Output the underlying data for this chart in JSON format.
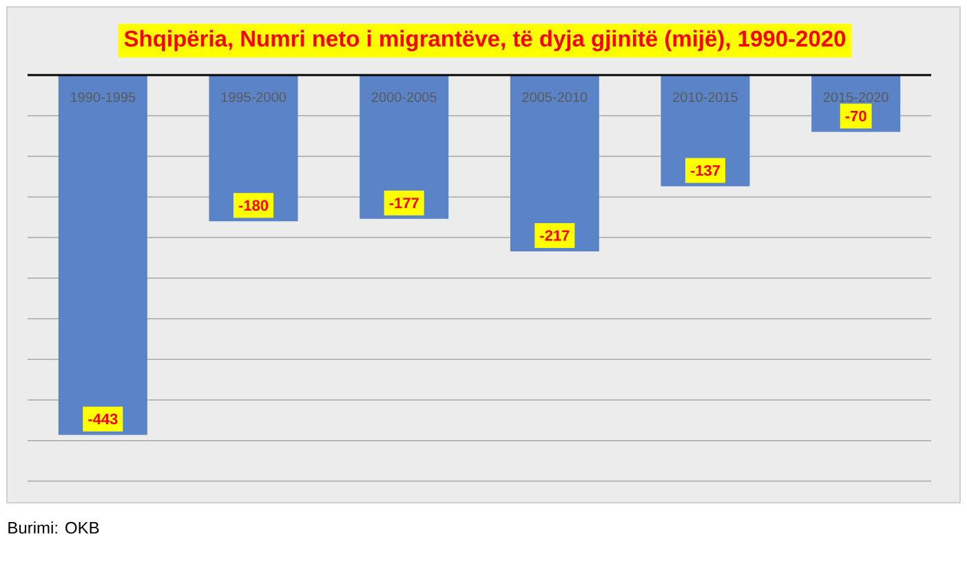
{
  "chart_data": {
    "type": "bar",
    "title": "Shqipëria, Numri neto i migrantëve, të dyja gjinitë (mijë), 1990-2020",
    "categories": [
      "1990-1995",
      "1995-2000",
      "2000-2005",
      "2005-2010",
      "2010-2015",
      "2015-2020"
    ],
    "values": [
      -443,
      -180,
      -177,
      -217,
      -137,
      -70
    ],
    "color": "#5b84c8",
    "ylim": [
      -500,
      0
    ],
    "yticks": [
      {
        "value": 0,
        "label": null
      },
      {
        "value": -50,
        "label": null
      },
      {
        "value": -100,
        "label": null
      },
      {
        "value": -150,
        "label": null
      },
      {
        "value": -200,
        "label": null
      },
      {
        "value": -250,
        "label": null
      },
      {
        "value": -300,
        "label": null
      },
      {
        "value": -350,
        "label": null
      },
      {
        "value": -400,
        "label": null
      },
      {
        "value": -450,
        "label": null
      },
      {
        "value": -500,
        "label": null
      }
    ],
    "grid": "y",
    "data_labels": true,
    "tick_labels": "x",
    "annotations": [
      "Burimi: OKB"
    ]
  }
}
